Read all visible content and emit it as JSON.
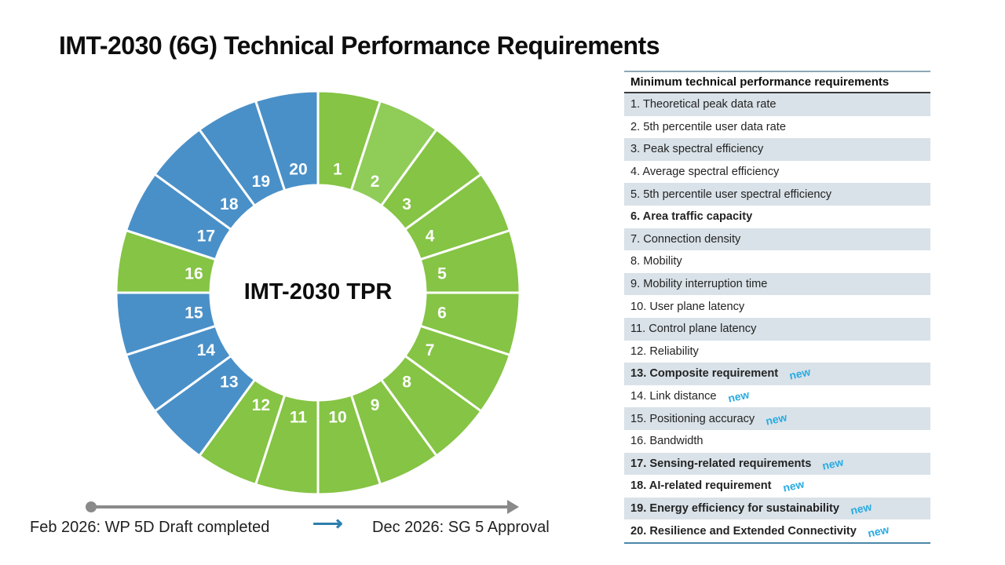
{
  "page": {
    "title": "IMT-2030 (6G) Technical Performance Requirements"
  },
  "chart_data": {
    "type": "pie",
    "variant": "donut",
    "center_label": "IMT-2030 TPR",
    "start_angle_deg": 0,
    "direction": "clockwise",
    "inner_radius_ratio": 0.53,
    "gap_color": "#ffffff",
    "colors": {
      "existing_green": "#85C444",
      "light_green": "#8FCC58",
      "new_blue": "#4A90C8"
    },
    "segments": [
      {
        "label": "1",
        "value": 1,
        "color": "#85C444"
      },
      {
        "label": "2",
        "value": 1,
        "color": "#8FCC58"
      },
      {
        "label": "3",
        "value": 1,
        "color": "#85C444"
      },
      {
        "label": "4",
        "value": 1,
        "color": "#85C444"
      },
      {
        "label": "5",
        "value": 1,
        "color": "#85C444"
      },
      {
        "label": "6",
        "value": 1,
        "color": "#85C444"
      },
      {
        "label": "7",
        "value": 1,
        "color": "#85C444"
      },
      {
        "label": "8",
        "value": 1,
        "color": "#85C444"
      },
      {
        "label": "9",
        "value": 1,
        "color": "#85C444"
      },
      {
        "label": "10",
        "value": 1,
        "color": "#85C444"
      },
      {
        "label": "11",
        "value": 1,
        "color": "#85C444"
      },
      {
        "label": "12",
        "value": 1,
        "color": "#85C444"
      },
      {
        "label": "13",
        "value": 1,
        "color": "#4A90C8"
      },
      {
        "label": "14",
        "value": 1,
        "color": "#4A90C8"
      },
      {
        "label": "15",
        "value": 1,
        "color": "#4A90C8"
      },
      {
        "label": "16",
        "value": 1,
        "color": "#85C444"
      },
      {
        "label": "17",
        "value": 1,
        "color": "#4A90C8"
      },
      {
        "label": "18",
        "value": 1,
        "color": "#4A90C8"
      },
      {
        "label": "19",
        "value": 1,
        "color": "#4A90C8"
      },
      {
        "label": "20",
        "value": 1,
        "color": "#4A90C8"
      }
    ]
  },
  "timeline": {
    "start_label": "Feb 2026: WP 5D Draft completed",
    "end_label": "Dec 2026: SG 5 Approval",
    "arrow_glyph": "⟶",
    "line_color": "#8a8a8a",
    "arrow_color": "#2e7eae"
  },
  "table": {
    "header": "Minimum technical performance requirements",
    "new_badge": "new",
    "colors": {
      "shaded_row": "#d9e2e8",
      "accent_border_top": "#8ca8b4",
      "accent_border_bottom": "#4c87a8",
      "new_badge_color": "#29abe2"
    },
    "rows": [
      {
        "label": "1. Theoretical peak data rate",
        "bold": false,
        "new": false
      },
      {
        "label": "2. 5th percentile user data rate",
        "bold": false,
        "new": false
      },
      {
        "label": "3. Peak spectral efficiency",
        "bold": false,
        "new": false
      },
      {
        "label": "4. Average spectral efficiency",
        "bold": false,
        "new": false
      },
      {
        "label": "5. 5th percentile user spectral efficiency",
        "bold": false,
        "new": false
      },
      {
        "label": "6. Area traffic capacity",
        "bold": true,
        "new": false
      },
      {
        "label": "7. Connection density",
        "bold": false,
        "new": false
      },
      {
        "label": "8. Mobility",
        "bold": false,
        "new": false
      },
      {
        "label": "9. Mobility interruption time",
        "bold": false,
        "new": false
      },
      {
        "label": "10. User plane latency",
        "bold": false,
        "new": false
      },
      {
        "label": "11. Control plane latency",
        "bold": false,
        "new": false
      },
      {
        "label": "12. Reliability",
        "bold": false,
        "new": false
      },
      {
        "label": "13. Composite requirement",
        "bold": true,
        "new": true
      },
      {
        "label": "14. Link distance",
        "bold": false,
        "new": true
      },
      {
        "label": "15. Positioning accuracy",
        "bold": false,
        "new": true
      },
      {
        "label": "16. Bandwidth",
        "bold": false,
        "new": false
      },
      {
        "label": "17. Sensing-related requirements",
        "bold": true,
        "new": true
      },
      {
        "label": "18. AI-related requirement",
        "bold": true,
        "new": true
      },
      {
        "label": "19. Energy efficiency for sustainability",
        "bold": true,
        "new": true
      },
      {
        "label": "20. Resilience and Extended Connectivity",
        "bold": true,
        "new": true
      }
    ]
  }
}
